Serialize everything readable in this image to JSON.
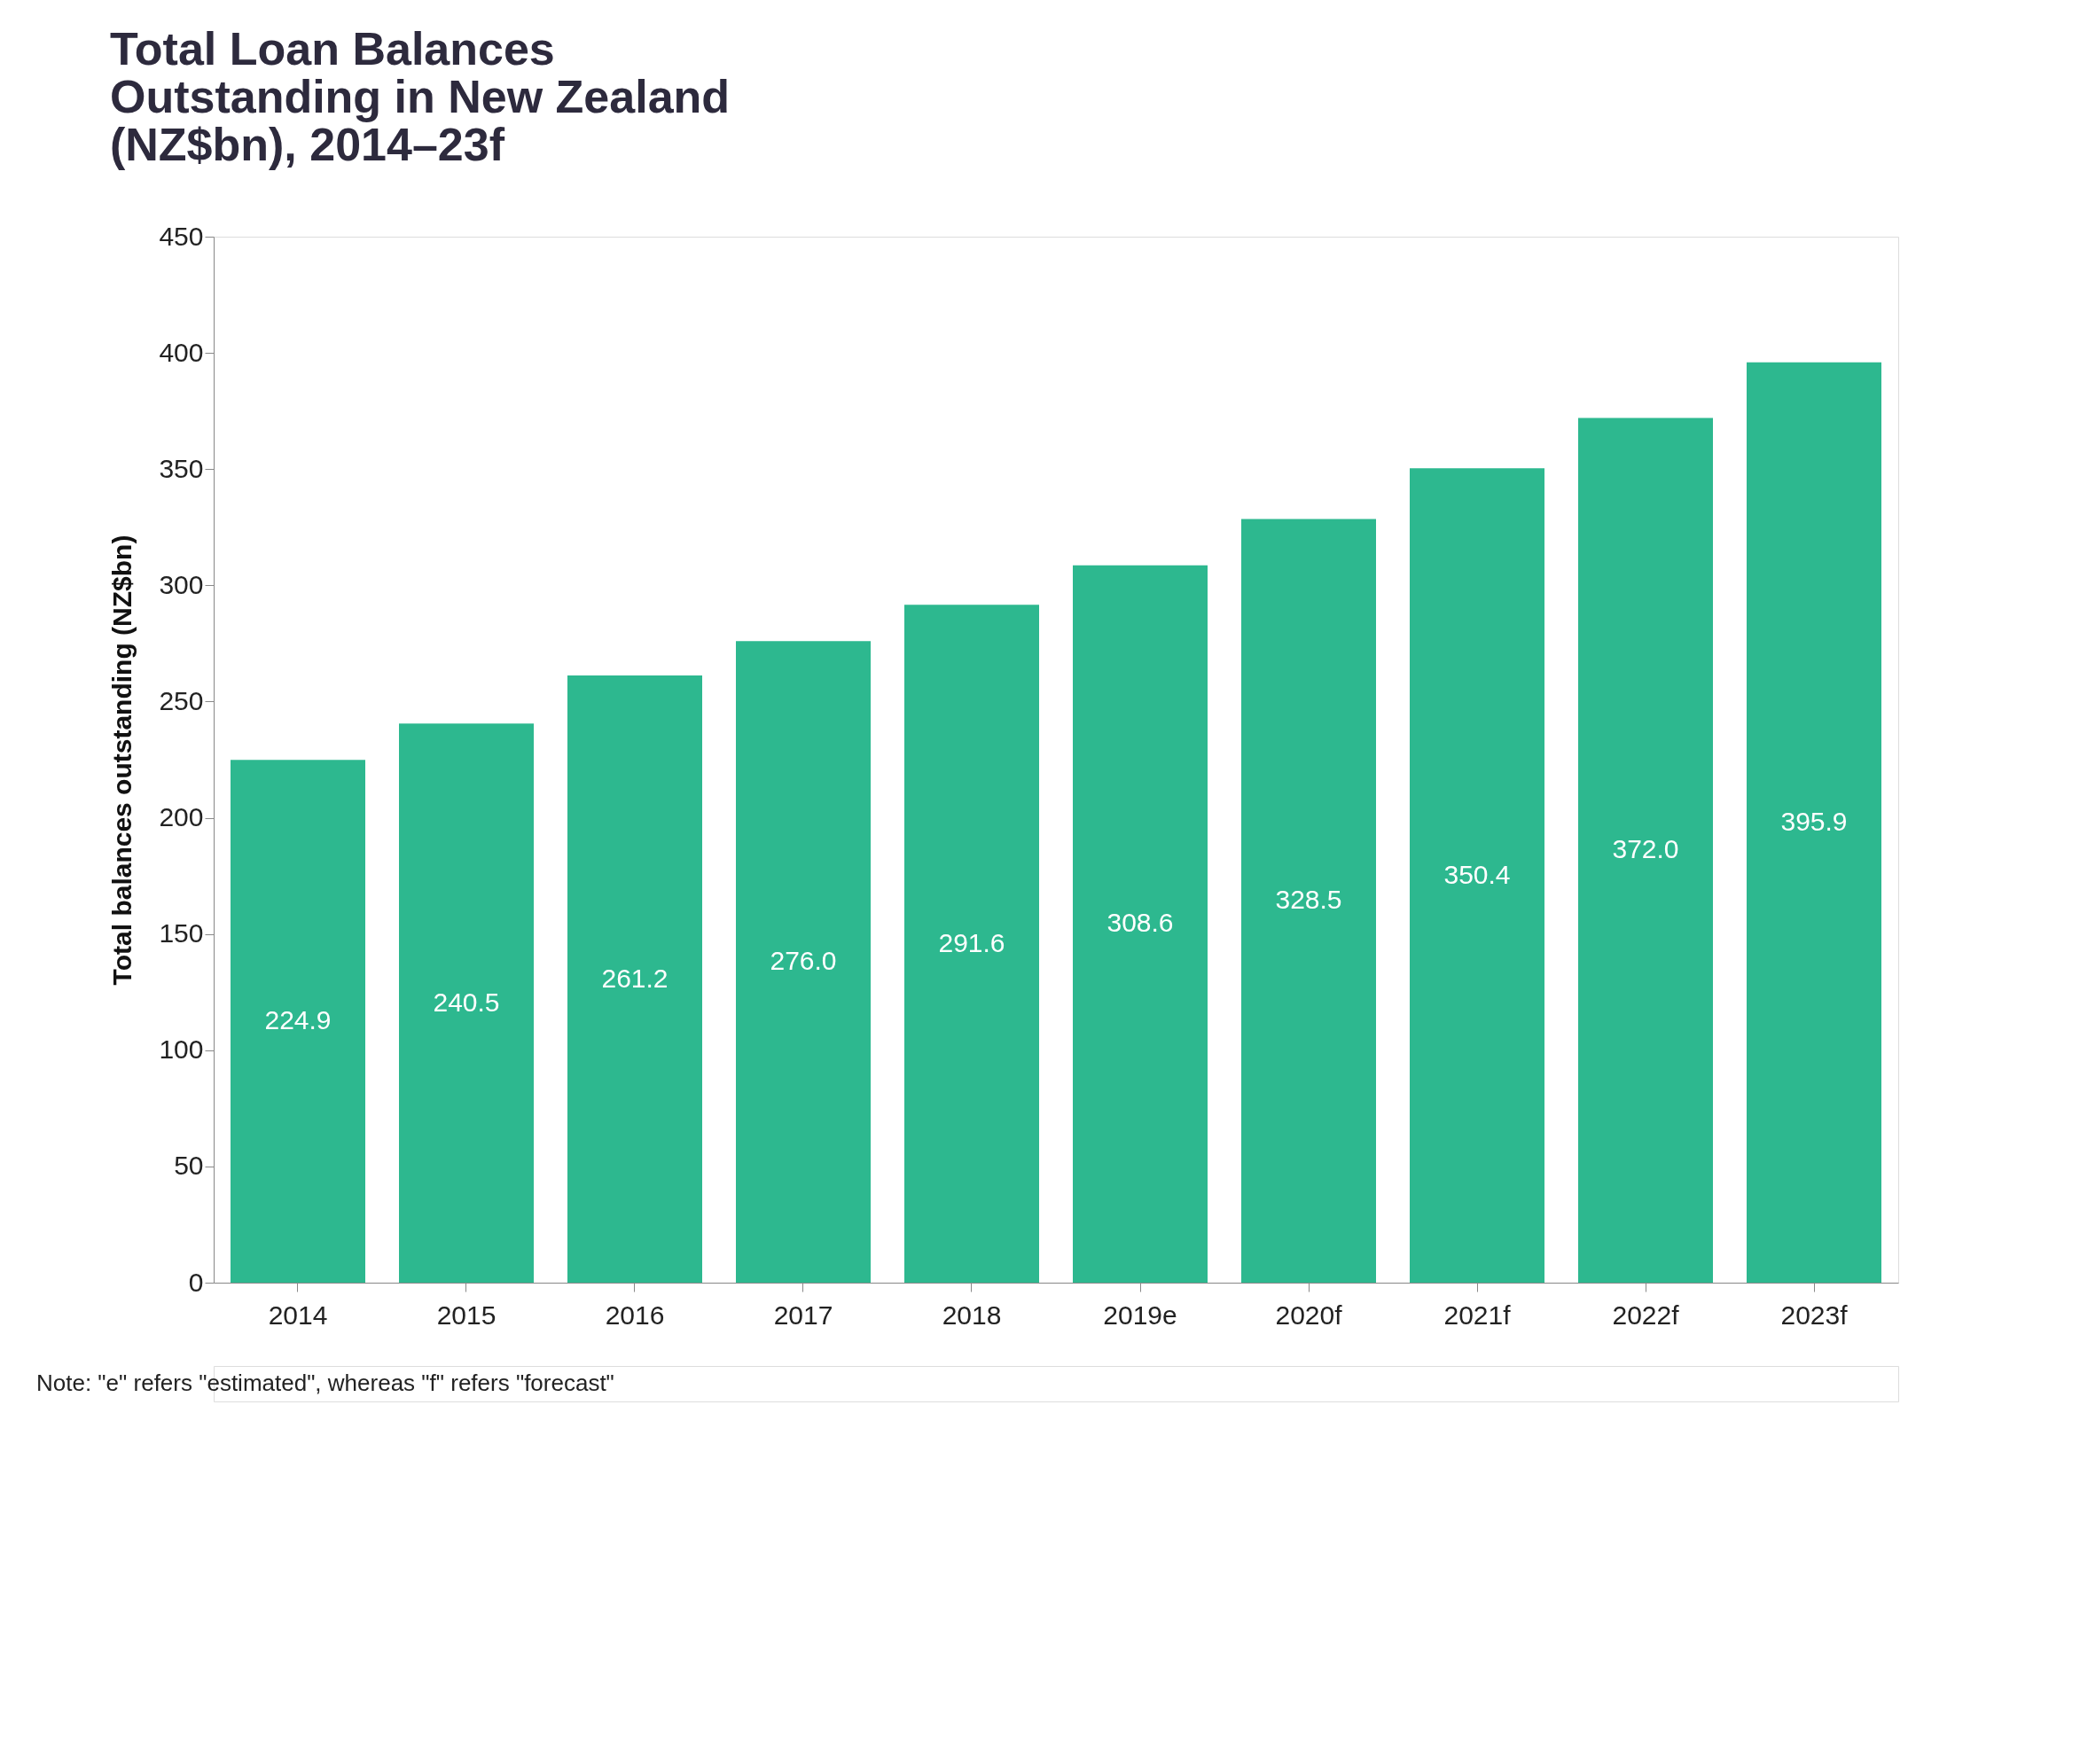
{
  "chart_data": {
    "type": "bar",
    "title": [
      "Total Loan Balances",
      "Outstanding in New Zealand",
      "(NZ$bn), 2014–23f"
    ],
    "ylabel": "Total balances outstanding (NZ$bn)",
    "categories": [
      "2014",
      "2015",
      "2016",
      "2017",
      "2018",
      "2019e",
      "2020f",
      "2021f",
      "2022f",
      "2023f"
    ],
    "values": [
      224.9,
      240.5,
      261.2,
      276.0,
      291.6,
      308.6,
      328.5,
      350.4,
      372.0,
      395.9
    ],
    "value_labels": [
      "224.9",
      "240.5",
      "261.2",
      "276.0",
      "291.6",
      "308.6",
      "328.5",
      "350.4",
      "372.0",
      "395.9"
    ],
    "color": "#2db88f",
    "ylim": [
      0,
      450
    ],
    "yticks": [
      0,
      50,
      100,
      150,
      200,
      250,
      300,
      350,
      400,
      450
    ],
    "grid": false,
    "annotations": [
      "Note: \"e\" refers \"estimated\", whereas \"f\" refers \"forecast\""
    ]
  }
}
